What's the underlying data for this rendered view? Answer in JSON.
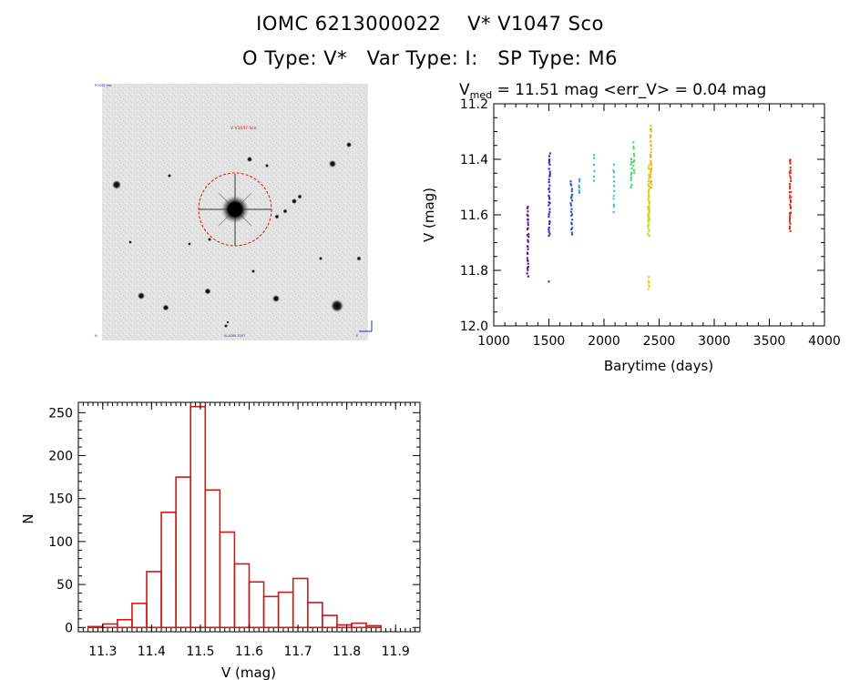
{
  "header": {
    "title_line1": "IOMC 6213000022    V* V1047 Sco",
    "title_line2": "O Type: V*   Var Type: I:   SP Type: M6"
  },
  "finder": {
    "target_label": "V V1047 Sco",
    "corner_tl": "POSS2 red",
    "corner_bl": "N",
    "corner_bc": "ALADIN 2007",
    "corner_br": "E"
  },
  "chart_data": [
    {
      "type": "scatter",
      "title_prefix": "V",
      "title_sub": "med",
      "title_rest": " = 11.51 mag <err_V> = 0.04 mag",
      "xlabel": "Barytime (days)",
      "ylabel": "V (mag)",
      "xlim": [
        1000,
        4000
      ],
      "ylim": [
        12.0,
        11.2
      ],
      "xticks": [
        "1000",
        "1500",
        "2000",
        "2500",
        "3000",
        "3500",
        "4000"
      ],
      "yticks": [
        "11.2",
        "11.4",
        "11.6",
        "11.8",
        "12.0"
      ],
      "series": [
        {
          "name": "s1",
          "color": "#5a0a8c",
          "x": 1310,
          "xspread": 14,
          "ymin": 11.57,
          "ymax": 11.82,
          "n": 30
        },
        {
          "name": "s2",
          "color": "#3d1bb0",
          "x": 1505,
          "xspread": 14,
          "ymin": 11.38,
          "ymax": 11.68,
          "n": 36
        },
        {
          "name": "s2b",
          "color": "#2a1aa0",
          "x": 1500,
          "xspread": 2,
          "ymin": 11.84,
          "ymax": 11.84,
          "n": 1
        },
        {
          "name": "s3",
          "color": "#1f4fc8",
          "x": 1705,
          "xspread": 16,
          "ymin": 11.48,
          "ymax": 11.67,
          "n": 22
        },
        {
          "name": "s4",
          "color": "#1aa3d8",
          "x": 1775,
          "xspread": 6,
          "ymin": 11.47,
          "ymax": 11.52,
          "n": 6
        },
        {
          "name": "s5",
          "color": "#22c4d8",
          "x": 1910,
          "xspread": 6,
          "ymin": 11.38,
          "ymax": 11.48,
          "n": 6
        },
        {
          "name": "s6",
          "color": "#25cfb0",
          "x": 2090,
          "xspread": 8,
          "ymin": 11.42,
          "ymax": 11.59,
          "n": 12
        },
        {
          "name": "s7",
          "color": "#2ad26a",
          "x": 2250,
          "xspread": 10,
          "ymin": 11.4,
          "ymax": 11.5,
          "n": 10
        },
        {
          "name": "s8",
          "color": "#36e03a",
          "x": 2270,
          "xspread": 10,
          "ymin": 11.34,
          "ymax": 11.45,
          "n": 10
        },
        {
          "name": "s9",
          "color": "#b7e21c",
          "x": 2405,
          "xspread": 14,
          "ymin": 11.48,
          "ymax": 11.68,
          "n": 40
        },
        {
          "name": "s10",
          "color": "#e0d21a",
          "x": 2410,
          "xspread": 14,
          "ymin": 11.42,
          "ymax": 11.62,
          "n": 24
        },
        {
          "name": "s11",
          "color": "#f0b010",
          "x": 2425,
          "xspread": 12,
          "ymin": 11.28,
          "ymax": 11.5,
          "n": 30
        },
        {
          "name": "s12",
          "color": "#d8dc1a",
          "x": 2408,
          "xspread": 10,
          "ymin": 11.82,
          "ymax": 11.87,
          "n": 8
        },
        {
          "name": "s13",
          "color": "#e0301c",
          "x": 3690,
          "xspread": 14,
          "ymin": 11.4,
          "ymax": 11.66,
          "n": 40
        }
      ]
    },
    {
      "type": "bar",
      "xlabel": "V (mag)",
      "ylabel": "N",
      "xlim": [
        11.25,
        11.95
      ],
      "ylim": [
        -5,
        262
      ],
      "xticks": [
        "11.3",
        "11.4",
        "11.5",
        "11.6",
        "11.7",
        "11.8",
        "11.9"
      ],
      "yticks": [
        "0",
        "50",
        "100",
        "150",
        "200",
        "250"
      ],
      "bin_width": 0.03,
      "bin_starts": [
        11.27,
        11.3,
        11.33,
        11.36,
        11.39,
        11.42,
        11.45,
        11.48,
        11.51,
        11.54,
        11.57,
        11.6,
        11.63,
        11.66,
        11.69,
        11.72,
        11.75,
        11.78,
        11.81,
        11.84,
        11.87
      ],
      "values": [
        1,
        4,
        9,
        28,
        65,
        134,
        175,
        257,
        160,
        111,
        74,
        53,
        36,
        41,
        57,
        29,
        14,
        3,
        5,
        2,
        0
      ],
      "color": "#d01818"
    }
  ]
}
